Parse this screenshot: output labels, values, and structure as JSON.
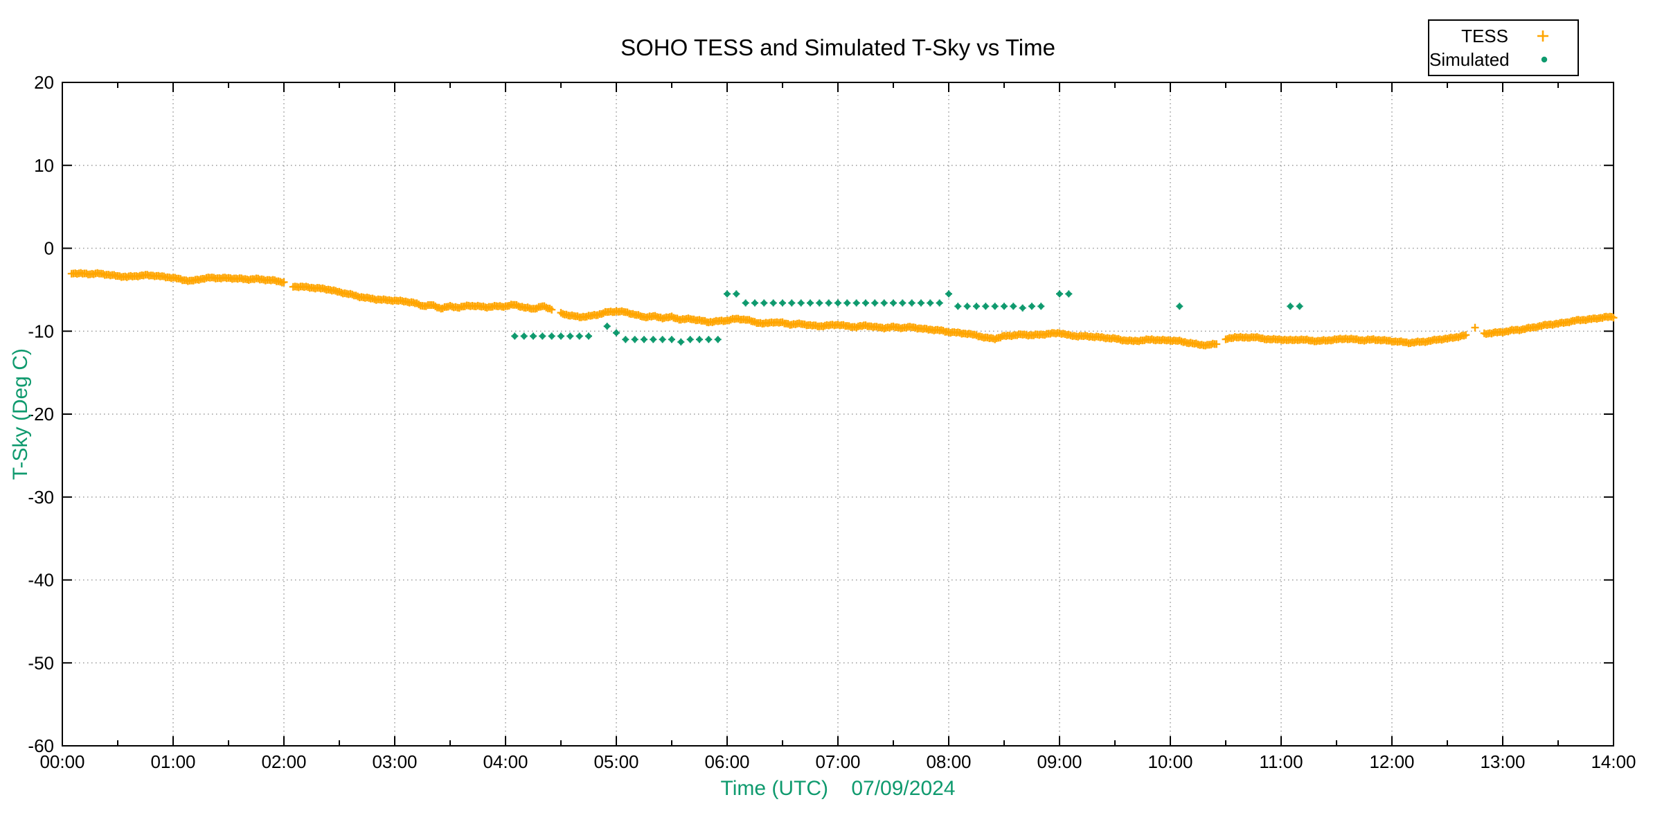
{
  "chart_data": {
    "type": "scatter",
    "title": "SOHO TESS and Simulated T-Sky vs Time",
    "xlabel": "Time (UTC)    07/09/2024",
    "ylabel": "T-Sky (Deg C)",
    "axis_label_color": "#0f9a6e",
    "grid": true,
    "legend_position": "top-right",
    "x_range_hours": [
      0,
      14
    ],
    "ylim": [
      -60,
      20
    ],
    "x_tick_labels": [
      "00:00",
      "01:00",
      "02:00",
      "03:00",
      "04:00",
      "05:00",
      "06:00",
      "07:00",
      "08:00",
      "09:00",
      "10:00",
      "11:00",
      "12:00",
      "13:00",
      "14:00"
    ],
    "x_minor_tick_hours": 0.5,
    "y_ticks": [
      20,
      10,
      0,
      -10,
      -20,
      -30,
      -40,
      -50,
      -60
    ],
    "series": [
      {
        "name": "TESS",
        "color": "#FFA500",
        "marker": "plus",
        "points_minutes_degC": [
          [
            5,
            -3.0
          ],
          [
            10,
            -3.05
          ],
          [
            15,
            -3.1
          ],
          [
            20,
            -3.05
          ],
          [
            25,
            -3.2
          ],
          [
            30,
            -3.35
          ],
          [
            35,
            -3.45
          ],
          [
            40,
            -3.35
          ],
          [
            45,
            -3.25
          ],
          [
            50,
            -3.3
          ],
          [
            55,
            -3.45
          ],
          [
            60,
            -3.55
          ],
          [
            65,
            -3.8
          ],
          [
            70,
            -3.95
          ],
          [
            75,
            -3.7
          ],
          [
            80,
            -3.55
          ],
          [
            85,
            -3.6
          ],
          [
            90,
            -3.6
          ],
          [
            95,
            -3.65
          ],
          [
            100,
            -3.75
          ],
          [
            105,
            -3.7
          ],
          [
            110,
            -3.8
          ],
          [
            115,
            -3.9
          ],
          [
            120,
            -4.1
          ],
          [
            125,
            -4.6
          ],
          [
            130,
            -4.65
          ],
          [
            135,
            -4.75
          ],
          [
            140,
            -4.85
          ],
          [
            145,
            -5.0
          ],
          [
            150,
            -5.3
          ],
          [
            155,
            -5.5
          ],
          [
            160,
            -5.8
          ],
          [
            165,
            -6.0
          ],
          [
            170,
            -6.15
          ],
          [
            175,
            -6.25
          ],
          [
            180,
            -6.3
          ],
          [
            185,
            -6.4
          ],
          [
            190,
            -6.55
          ],
          [
            195,
            -6.95
          ],
          [
            200,
            -6.85
          ],
          [
            205,
            -7.25
          ],
          [
            210,
            -7.0
          ],
          [
            215,
            -7.15
          ],
          [
            220,
            -6.9
          ],
          [
            225,
            -7.0
          ],
          [
            230,
            -7.1
          ],
          [
            235,
            -7.0
          ],
          [
            240,
            -7.0
          ],
          [
            245,
            -6.8
          ],
          [
            250,
            -7.15
          ],
          [
            255,
            -7.3
          ],
          [
            260,
            -7.0
          ],
          [
            265,
            -7.35
          ],
          [
            270,
            -7.85
          ],
          [
            275,
            -8.1
          ],
          [
            280,
            -8.3
          ],
          [
            285,
            -8.2
          ],
          [
            290,
            -8.0
          ],
          [
            295,
            -7.7
          ],
          [
            300,
            -7.6
          ],
          [
            305,
            -7.7
          ],
          [
            310,
            -8.0
          ],
          [
            315,
            -8.3
          ],
          [
            320,
            -8.2
          ],
          [
            325,
            -8.4
          ],
          [
            330,
            -8.3
          ],
          [
            335,
            -8.6
          ],
          [
            340,
            -8.5
          ],
          [
            345,
            -8.7
          ],
          [
            350,
            -8.9
          ],
          [
            355,
            -8.8
          ],
          [
            360,
            -8.7
          ],
          [
            365,
            -8.5
          ],
          [
            370,
            -8.6
          ],
          [
            375,
            -8.9
          ],
          [
            380,
            -9.1
          ],
          [
            385,
            -8.9
          ],
          [
            390,
            -9.0
          ],
          [
            395,
            -9.2
          ],
          [
            400,
            -9.1
          ],
          [
            405,
            -9.3
          ],
          [
            410,
            -9.4
          ],
          [
            415,
            -9.3
          ],
          [
            420,
            -9.2
          ],
          [
            425,
            -9.4
          ],
          [
            430,
            -9.5
          ],
          [
            435,
            -9.3
          ],
          [
            440,
            -9.5
          ],
          [
            445,
            -9.6
          ],
          [
            450,
            -9.5
          ],
          [
            455,
            -9.6
          ],
          [
            460,
            -9.5
          ],
          [
            465,
            -9.7
          ],
          [
            470,
            -9.8
          ],
          [
            475,
            -9.9
          ],
          [
            480,
            -10.1
          ],
          [
            485,
            -10.2
          ],
          [
            490,
            -10.3
          ],
          [
            495,
            -10.5
          ],
          [
            500,
            -10.8
          ],
          [
            505,
            -10.9
          ],
          [
            510,
            -10.6
          ],
          [
            515,
            -10.5
          ],
          [
            520,
            -10.4
          ],
          [
            525,
            -10.5
          ],
          [
            530,
            -10.4
          ],
          [
            535,
            -10.3
          ],
          [
            540,
            -10.2
          ],
          [
            545,
            -10.5
          ],
          [
            550,
            -10.6
          ],
          [
            555,
            -10.6
          ],
          [
            560,
            -10.7
          ],
          [
            565,
            -10.8
          ],
          [
            570,
            -10.9
          ],
          [
            575,
            -11.1
          ],
          [
            580,
            -11.2
          ],
          [
            585,
            -11.1
          ],
          [
            590,
            -11.0
          ],
          [
            595,
            -11.1
          ],
          [
            600,
            -11.1
          ],
          [
            605,
            -11.2
          ],
          [
            610,
            -11.4
          ],
          [
            615,
            -11.6
          ],
          [
            620,
            -11.7
          ],
          [
            625,
            -11.5
          ],
          [
            630,
            -11.0
          ],
          [
            635,
            -10.7
          ],
          [
            640,
            -10.8
          ],
          [
            645,
            -10.7
          ],
          [
            650,
            -10.9
          ],
          [
            655,
            -11.0
          ],
          [
            660,
            -11.0
          ],
          [
            665,
            -11.1
          ],
          [
            670,
            -11.0
          ],
          [
            675,
            -11.1
          ],
          [
            680,
            -11.2
          ],
          [
            685,
            -11.1
          ],
          [
            690,
            -11.0
          ],
          [
            695,
            -10.9
          ],
          [
            700,
            -11.0
          ],
          [
            705,
            -11.1
          ],
          [
            710,
            -11.0
          ],
          [
            715,
            -11.1
          ],
          [
            720,
            -11.2
          ],
          [
            725,
            -11.3
          ],
          [
            730,
            -11.4
          ],
          [
            735,
            -11.3
          ],
          [
            740,
            -11.2
          ],
          [
            745,
            -11.0
          ],
          [
            750,
            -10.9
          ],
          [
            755,
            -10.7
          ],
          [
            760,
            -10.5
          ],
          [
            765,
            -9.5
          ],
          [
            770,
            -10.3
          ],
          [
            775,
            -10.2
          ],
          [
            780,
            -10.1
          ],
          [
            785,
            -9.9
          ],
          [
            790,
            -9.8
          ],
          [
            795,
            -9.6
          ],
          [
            800,
            -9.4
          ],
          [
            805,
            -9.2
          ],
          [
            810,
            -9.1
          ],
          [
            815,
            -8.9
          ],
          [
            820,
            -8.7
          ],
          [
            825,
            -8.6
          ],
          [
            830,
            -8.5
          ],
          [
            835,
            -8.3
          ],
          [
            840,
            -8.3
          ]
        ]
      },
      {
        "name": "Simulated",
        "color": "#0f9a6e",
        "marker": "dot",
        "points_minutes_degC": [
          [
            245,
            -10.6
          ],
          [
            250,
            -10.6
          ],
          [
            255,
            -10.6
          ],
          [
            260,
            -10.6
          ],
          [
            265,
            -10.6
          ],
          [
            270,
            -10.6
          ],
          [
            275,
            -10.6
          ],
          [
            280,
            -10.6
          ],
          [
            285,
            -10.6
          ],
          [
            295,
            -9.4
          ],
          [
            300,
            -10.2
          ],
          [
            305,
            -11.0
          ],
          [
            310,
            -11.0
          ],
          [
            315,
            -11.0
          ],
          [
            320,
            -11.0
          ],
          [
            325,
            -11.0
          ],
          [
            330,
            -11.0
          ],
          [
            335,
            -11.3
          ],
          [
            340,
            -11.0
          ],
          [
            345,
            -11.0
          ],
          [
            350,
            -11.0
          ],
          [
            355,
            -11.0
          ],
          [
            360,
            -5.5
          ],
          [
            365,
            -5.5
          ],
          [
            370,
            -6.6
          ],
          [
            375,
            -6.6
          ],
          [
            380,
            -6.6
          ],
          [
            385,
            -6.6
          ],
          [
            390,
            -6.6
          ],
          [
            395,
            -6.6
          ],
          [
            400,
            -6.6
          ],
          [
            405,
            -6.6
          ],
          [
            410,
            -6.6
          ],
          [
            415,
            -6.6
          ],
          [
            420,
            -6.6
          ],
          [
            425,
            -6.6
          ],
          [
            430,
            -6.6
          ],
          [
            435,
            -6.6
          ],
          [
            440,
            -6.6
          ],
          [
            445,
            -6.6
          ],
          [
            450,
            -6.6
          ],
          [
            455,
            -6.6
          ],
          [
            460,
            -6.6
          ],
          [
            465,
            -6.6
          ],
          [
            470,
            -6.6
          ],
          [
            475,
            -6.6
          ],
          [
            480,
            -5.5
          ],
          [
            485,
            -7.0
          ],
          [
            490,
            -7.0
          ],
          [
            495,
            -7.0
          ],
          [
            500,
            -7.0
          ],
          [
            505,
            -7.0
          ],
          [
            510,
            -7.0
          ],
          [
            515,
            -7.0
          ],
          [
            520,
            -7.2
          ],
          [
            525,
            -7.0
          ],
          [
            530,
            -7.0
          ],
          [
            540,
            -5.5
          ],
          [
            545,
            -5.5
          ],
          [
            605,
            -7.0
          ],
          [
            665,
            -7.0
          ],
          [
            670,
            -7.0
          ]
        ]
      }
    ]
  }
}
